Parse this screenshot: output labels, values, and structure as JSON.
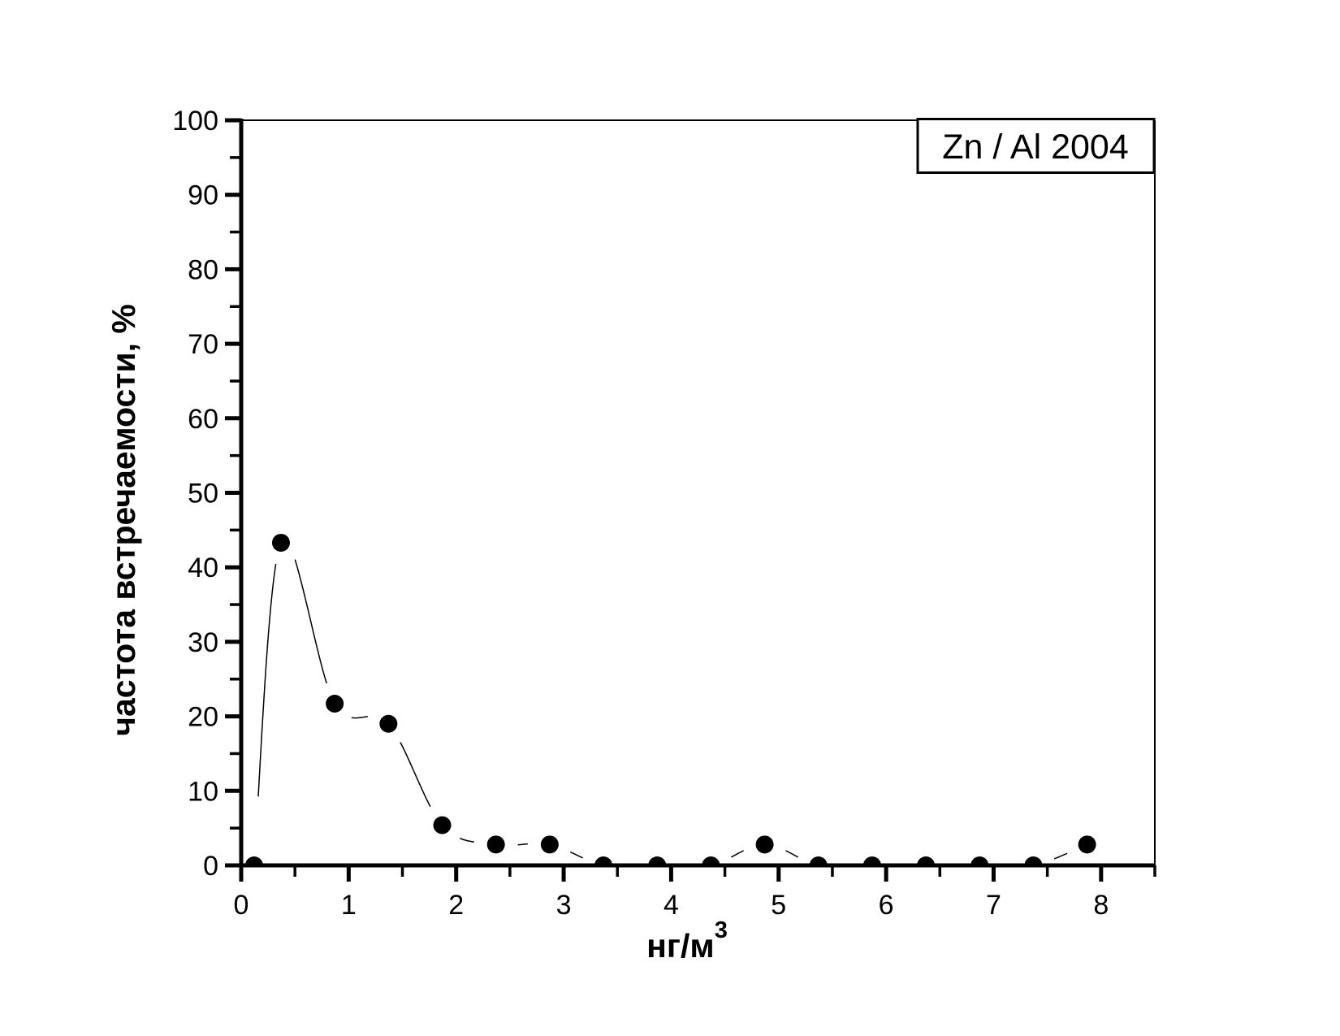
{
  "chart_data": {
    "type": "line",
    "legend": "Zn / Al 2004",
    "ylabel": "частота встречаемости, %",
    "xlabel": "нг/м",
    "xlabel_superscript": "3",
    "x": [
      0.12,
      0.37,
      0.87,
      1.37,
      1.87,
      2.37,
      2.87,
      3.37,
      3.87,
      4.37,
      4.87,
      5.37,
      5.87,
      6.37,
      6.87,
      7.37,
      7.87
    ],
    "y": [
      0,
      43.3,
      21.7,
      19.0,
      5.4,
      2.8,
      2.8,
      0,
      0,
      0,
      2.8,
      0,
      0,
      0,
      0,
      0,
      2.8
    ],
    "xlim": [
      0,
      8.5
    ],
    "ylim": [
      0,
      100
    ],
    "x_major_ticks": [
      0,
      1,
      2,
      3,
      4,
      5,
      6,
      7,
      8
    ],
    "x_minor_step": 0.5,
    "y_major_ticks": [
      0,
      10,
      20,
      30,
      40,
      50,
      60,
      70,
      80,
      90,
      100
    ],
    "y_minor_step": 5,
    "grid": false,
    "legend_position": "top-right",
    "line_color": "#000000",
    "marker_color": "#000000",
    "background_color": "#ffffff",
    "marker_shape": "filled-circle"
  }
}
